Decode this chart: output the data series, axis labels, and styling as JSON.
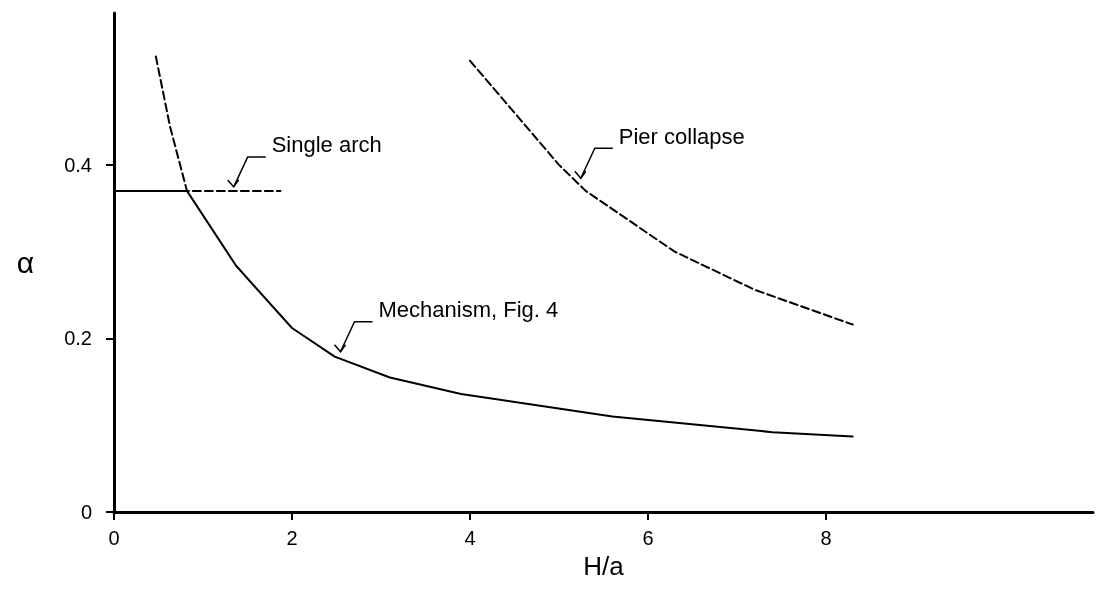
{
  "chart_data": {
    "type": "line",
    "xlabel": "H/a",
    "ylabel": "α",
    "xlim": [
      0,
      11
    ],
    "ylim": [
      0,
      0.575
    ],
    "xticks": [
      0,
      2,
      4,
      6,
      8
    ],
    "yticks": [
      0,
      0.2,
      0.4
    ],
    "grid": false,
    "marker": "none",
    "series": [
      {
        "color": "#000000",
        "line_style": "solid",
        "x": [
          0,
          0.82,
          1.37,
          2.0,
          2.48,
          3.1,
          3.9,
          4.75,
          5.6,
          7.4,
          8.3
        ],
        "values": [
          0.37,
          0.37,
          0.284,
          0.212,
          0.179,
          0.155,
          0.136,
          0.123,
          0.11,
          0.092,
          0.087
        ]
      },
      {
        "color": "#000000",
        "line_style": "dashed",
        "x": [
          0.47,
          0.63,
          0.82,
          1.87
        ],
        "values": [
          0.525,
          0.444,
          0.37,
          0.37
        ]
      },
      {
        "color": "#000000",
        "line_style": "dashed",
        "x": [
          4.0,
          5.0,
          5.3,
          6.3,
          7.2,
          8.3
        ],
        "values": [
          0.52,
          0.4,
          0.37,
          0.3,
          0.256,
          0.216
        ]
      }
    ],
    "annotations": [
      {
        "text": "Single arch",
        "x": 1.3,
        "y": 0.37
      },
      {
        "text": "Mechanism, Fig. 4",
        "x": 2.5,
        "y": 0.18
      },
      {
        "text": "Pier collapse",
        "x": 5.2,
        "y": 0.38
      }
    ]
  }
}
